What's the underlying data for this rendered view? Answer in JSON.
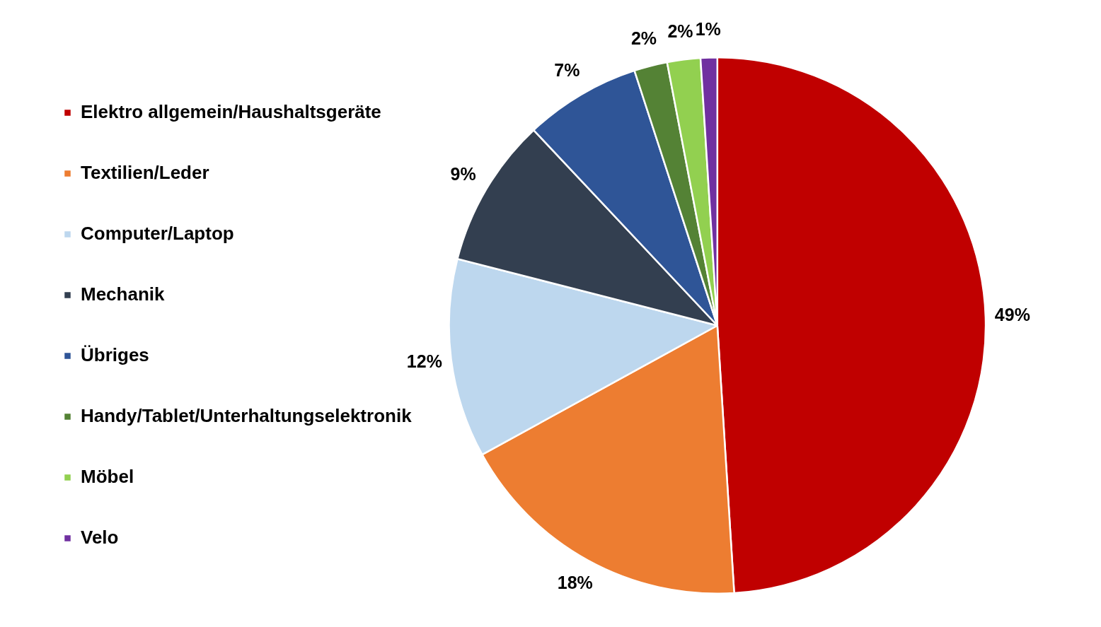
{
  "chart_data": {
    "type": "pie",
    "categories": [
      "Elektro allgemein/Haushaltsgeräte",
      "Textilien/Leder",
      "Computer/Laptop",
      "Mechanik",
      "Übriges",
      "Handy/Tablet/Unterhaltungselektronik",
      "Möbel",
      "Velo"
    ],
    "values": [
      49,
      18,
      12,
      9,
      7,
      2,
      2,
      1
    ],
    "colors": [
      "#c00000",
      "#ed7d31",
      "#bdd7ee",
      "#333f50",
      "#2f5597",
      "#548235",
      "#92d050",
      "#7030a0"
    ],
    "value_labels": [
      "49%",
      "18%",
      "12%",
      "9%",
      "7%",
      "2%",
      "2%",
      "1%"
    ],
    "legend": "left"
  }
}
